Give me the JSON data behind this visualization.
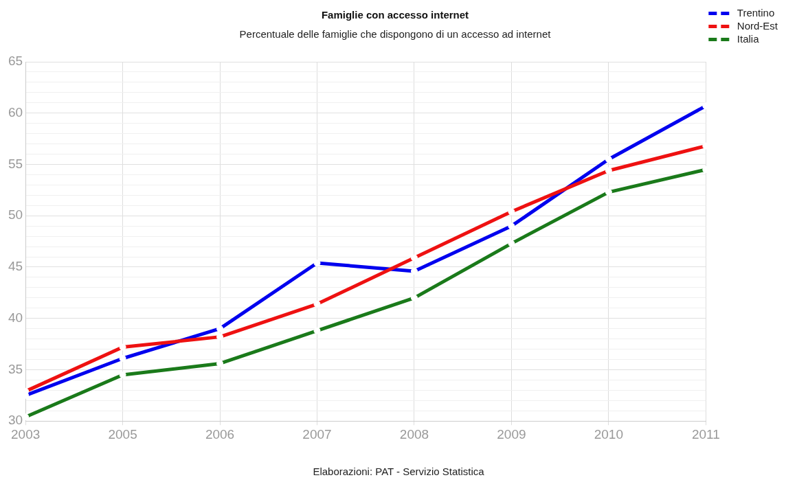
{
  "chart_data": {
    "type": "line",
    "title": "Famiglie con accesso internet",
    "subtitle": "Percentuale delle famiglie che dispongono di un accesso ad internet",
    "categories": [
      "2003",
      "2005",
      "2006",
      "2007",
      "2008",
      "2009",
      "2010",
      "2011"
    ],
    "series": [
      {
        "name": "Trentino",
        "color": "#0000ee",
        "values": [
          32.5,
          36.1,
          39.0,
          45.4,
          44.6,
          49.0,
          55.5,
          60.7
        ]
      },
      {
        "name": "Nord-Est",
        "color": "#ee1111",
        "values": [
          32.9,
          37.2,
          38.2,
          41.4,
          45.9,
          50.4,
          54.4,
          56.8
        ]
      },
      {
        "name": "Italia",
        "color": "#1a7a1a",
        "values": [
          30.4,
          34.5,
          35.6,
          38.8,
          42.0,
          47.3,
          52.3,
          54.5
        ]
      }
    ],
    "ylim": [
      30,
      65
    ],
    "yticks": [
      30,
      {
        "value": 31,
        "label": null
      },
      {
        "value": 32,
        "label": null
      },
      {
        "value": 33,
        "label": null
      },
      {
        "value": 34,
        "label": null
      },
      35,
      {
        "value": 36,
        "label": null
      },
      {
        "value": 37,
        "label": null
      },
      {
        "value": 38,
        "label": null
      },
      {
        "value": 39,
        "label": null
      },
      40,
      {
        "value": 41,
        "label": null
      },
      {
        "value": 42,
        "label": null
      },
      {
        "value": 43,
        "label": null
      },
      {
        "value": 44,
        "label": null
      },
      45,
      {
        "value": 46,
        "label": null
      },
      {
        "value": 47,
        "label": null
      },
      {
        "value": 48,
        "label": null
      },
      {
        "value": 49,
        "label": null
      },
      50,
      {
        "value": 51,
        "label": null
      },
      {
        "value": 52,
        "label": null
      },
      {
        "value": 53,
        "label": null
      },
      {
        "value": 54,
        "label": null
      },
      55,
      {
        "value": 56,
        "label": null
      },
      {
        "value": 57,
        "label": null
      },
      {
        "value": 58,
        "label": null
      },
      {
        "value": 59,
        "label": null
      },
      60,
      {
        "value": 61,
        "label": null
      },
      {
        "value": 62,
        "label": null
      },
      {
        "value": 63,
        "label": null
      },
      {
        "value": 64,
        "label": null
      },
      65
    ],
    "grid": true,
    "legend": "top right",
    "marker": "circle",
    "line_style": "solid",
    "annotations": [
      "Elaborazioni: PAT - Servizio Statistica"
    ]
  }
}
